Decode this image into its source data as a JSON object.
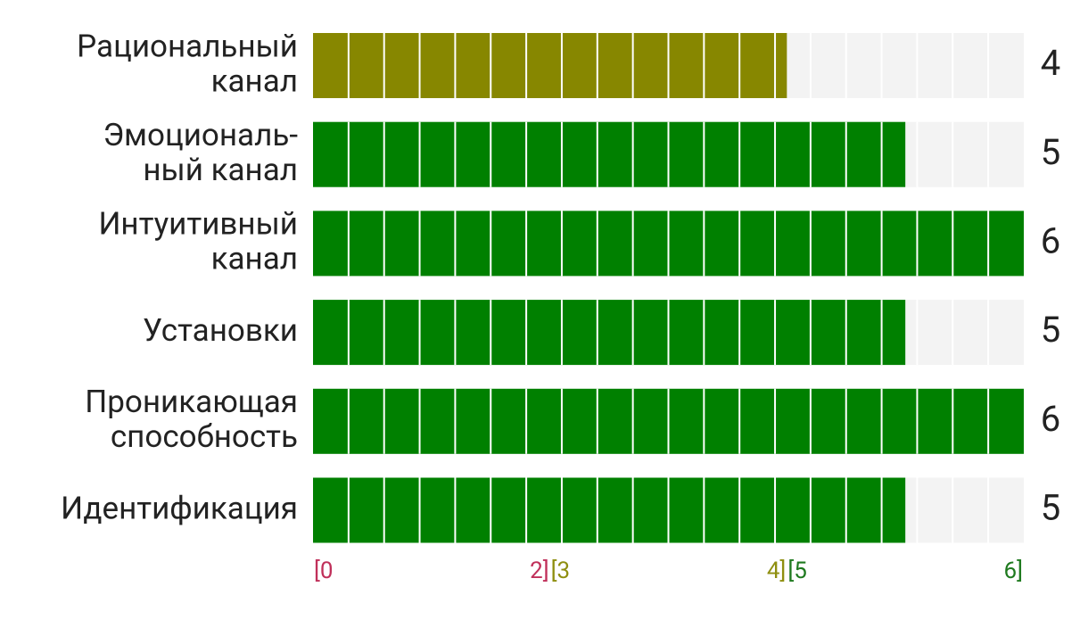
{
  "chart_data": {
    "type": "segmented-bar",
    "categories": [
      [
        "Рациональный",
        "канал"
      ],
      [
        "Эмоциональ-",
        "ный канал"
      ],
      [
        "Интуитивный",
        "канал"
      ],
      [
        "Установки"
      ],
      [
        "Проникающая",
        "способность"
      ],
      [
        "Идентификация"
      ]
    ],
    "values": [
      4,
      5,
      6,
      5,
      6,
      5
    ],
    "colors": [
      "#878700",
      "#008000",
      "#008000",
      "#008000",
      "#008000",
      "#008000"
    ],
    "track_color": "#f3f3f3",
    "xlim": [
      0,
      6
    ],
    "ranges": [
      {
        "start": {
          "value": 0,
          "label": "[0"
        },
        "end": {
          "value": 2,
          "label": "2]"
        },
        "color": "#c0305a"
      },
      {
        "start": {
          "value": 3,
          "label": "[3"
        },
        "end": {
          "value": 4,
          "label": "4]"
        },
        "color": "#8f8f10"
      },
      {
        "start": {
          "value": 5,
          "label": "[5"
        },
        "end": {
          "value": 6,
          "label": "6]"
        },
        "color": "#1f7a1f"
      }
    ]
  }
}
